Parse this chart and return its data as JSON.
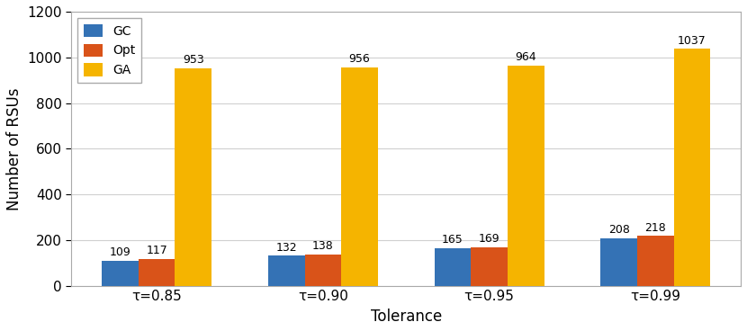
{
  "categories": [
    "τ=0.85",
    "τ=0.90",
    "τ=0.95",
    "τ=0.99"
  ],
  "series": {
    "GC": [
      109,
      132,
      165,
      208
    ],
    "Opt": [
      117,
      138,
      169,
      218
    ],
    "GA": [
      953,
      956,
      964,
      1037
    ]
  },
  "colors": {
    "GC": "#3472b5",
    "Opt": "#d95319",
    "GA": "#f5b400"
  },
  "ylim": [
    0,
    1200
  ],
  "yticks": [
    0,
    200,
    400,
    600,
    800,
    1000,
    1200
  ],
  "ylabel": "Number of RSUs",
  "xlabel": "Tolerance",
  "legend_labels": [
    "GC",
    "Opt",
    "GA"
  ],
  "bar_width": 0.22,
  "annotation_fontsize": 9,
  "axis_fontsize": 12,
  "tick_fontsize": 11,
  "legend_fontsize": 10,
  "background_color": "#ffffff",
  "grid_color": "#d0d0d0"
}
